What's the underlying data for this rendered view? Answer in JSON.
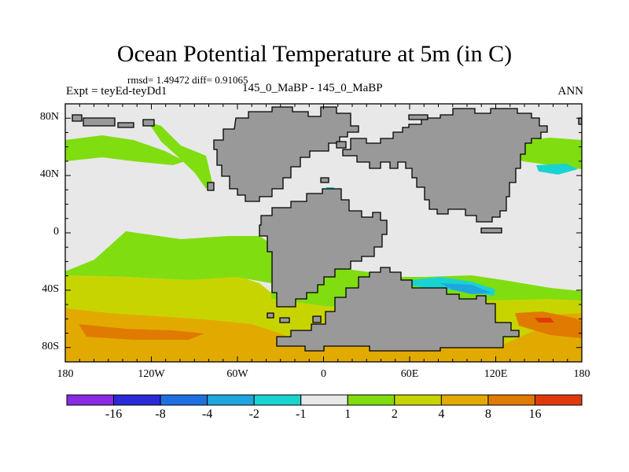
{
  "title": "Ocean Potential Temperature at 5m (in C)",
  "stats": "rmsd= 1.49472 diff= 0.91065",
  "left_label": "Expt = teyEd-teyDd1",
  "center_label": "145_0_MaBP - 145_0_MaBP",
  "right_label": "ANN",
  "map": {
    "lat_labels": [
      "80N",
      "40N",
      "0",
      "40S",
      "80S"
    ],
    "lat_values": [
      80,
      40,
      0,
      -40,
      -80
    ],
    "lon_labels": [
      "180",
      "120W",
      "60W",
      "0",
      "60E",
      "120E",
      "180"
    ],
    "lon_values": [
      -180,
      -120,
      -60,
      0,
      60,
      120,
      180
    ],
    "lon_range": [
      -180,
      180
    ],
    "lat_range": [
      -90,
      90
    ]
  },
  "colorbar": {
    "labels": [
      "-16",
      "-8",
      "-4",
      "-2",
      "-1",
      "1",
      "2",
      "4",
      "8",
      "16"
    ],
    "colors": [
      "#8a2be2",
      "#2a2ad8",
      "#1e6fe0",
      "#1ea6e0",
      "#19d3d0",
      "#e8e8e8",
      "#80dd10",
      "#c8d400",
      "#e2aa00",
      "#e07a00",
      "#e03a0a"
    ]
  },
  "colors": {
    "land": "#999999",
    "ocean_background": "#e8e8e8"
  }
}
